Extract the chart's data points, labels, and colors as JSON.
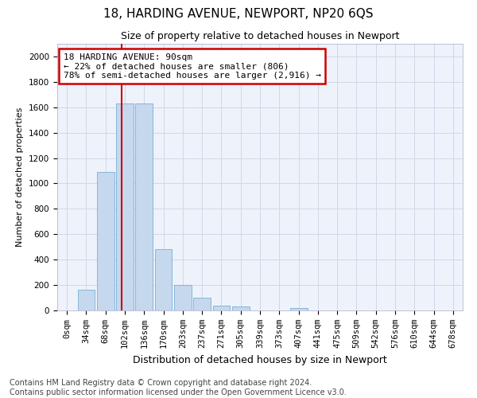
{
  "title1": "18, HARDING AVENUE, NEWPORT, NP20 6QS",
  "title2": "Size of property relative to detached houses in Newport",
  "xlabel": "Distribution of detached houses by size in Newport",
  "ylabel": "Number of detached properties",
  "footer1": "Contains HM Land Registry data © Crown copyright and database right 2024.",
  "footer2": "Contains public sector information licensed under the Open Government Licence v3.0.",
  "annotation_line1": "18 HARDING AVENUE: 90sqm",
  "annotation_line2": "← 22% of detached houses are smaller (806)",
  "annotation_line3": "78% of semi-detached houses are larger (2,916) →",
  "bar_color": "#c5d8ed",
  "bar_edge_color": "#7aafd4",
  "vline_color": "#cc0000",
  "annotation_box_edge": "#cc0000",
  "bg_color": "#eef2fb",
  "grid_color": "#d0d8e8",
  "categories": [
    "0sqm",
    "34sqm",
    "68sqm",
    "102sqm",
    "136sqm",
    "170sqm",
    "203sqm",
    "237sqm",
    "271sqm",
    "305sqm",
    "339sqm",
    "373sqm",
    "407sqm",
    "441sqm",
    "475sqm",
    "509sqm",
    "542sqm",
    "576sqm",
    "610sqm",
    "644sqm",
    "678sqm"
  ],
  "values": [
    0,
    165,
    1090,
    1630,
    1630,
    480,
    200,
    100,
    40,
    30,
    0,
    0,
    20,
    0,
    0,
    0,
    0,
    0,
    0,
    0,
    0
  ],
  "ylim": [
    0,
    2100
  ],
  "yticks": [
    0,
    200,
    400,
    600,
    800,
    1000,
    1200,
    1400,
    1600,
    1800,
    2000
  ],
  "vline_x": 2.85,
  "title1_fontsize": 11,
  "title2_fontsize": 9,
  "ylabel_fontsize": 8,
  "xlabel_fontsize": 9,
  "tick_fontsize": 7.5,
  "footer_fontsize": 7
}
